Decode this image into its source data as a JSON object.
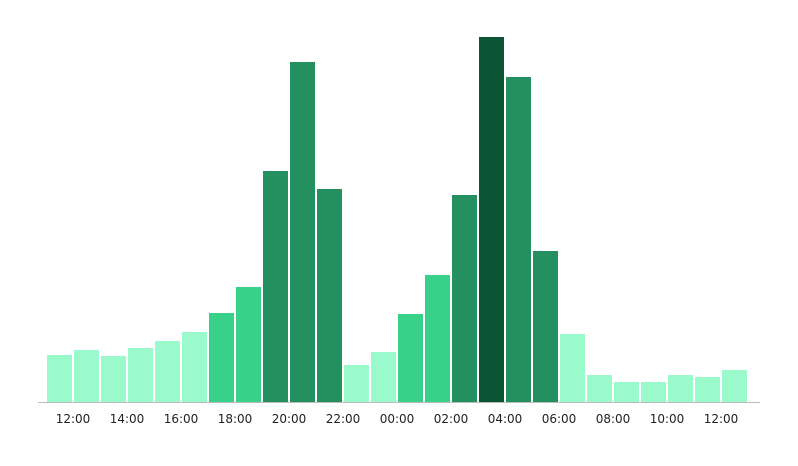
{
  "chart_data": {
    "type": "bar",
    "title": "",
    "xlabel": "",
    "ylabel": "",
    "y_axis_shown": false,
    "grid": false,
    "legend": "none",
    "ylim": [
      0,
      365
    ],
    "categories": [
      "11:00",
      "12:00",
      "13:00",
      "14:00",
      "15:00",
      "16:00",
      "17:00",
      "18:00",
      "19:00",
      "20:00",
      "21:00",
      "22:00",
      "23:00",
      "00:00",
      "01:00",
      "02:00",
      "03:00",
      "04:00",
      "05:00",
      "06:00",
      "07:00",
      "08:00",
      "09:00",
      "10:00",
      "11:00",
      "12:00"
    ],
    "values": [
      47,
      52,
      46,
      54,
      61,
      70,
      89,
      115,
      231,
      340,
      213,
      37,
      50,
      88,
      127,
      207,
      365,
      325,
      151,
      68,
      27,
      20,
      20,
      27,
      25,
      32
    ],
    "levels": [
      0,
      0,
      0,
      0,
      0,
      0,
      1,
      1,
      2,
      2,
      2,
      0,
      0,
      1,
      1,
      2,
      3,
      2,
      2,
      0,
      0,
      0,
      0,
      0,
      0,
      0
    ],
    "tick_labels": [
      "12:00",
      "14:00",
      "16:00",
      "18:00",
      "20:00",
      "22:00",
      "00:00",
      "02:00",
      "04:00",
      "06:00",
      "08:00",
      "10:00",
      "12:00"
    ],
    "colors": {
      "level_0": "#9afacb",
      "level_1": "#38d18a",
      "level_2": "#24905f",
      "level_3": "#0b5434",
      "axis": "#bbbbbb"
    }
  }
}
